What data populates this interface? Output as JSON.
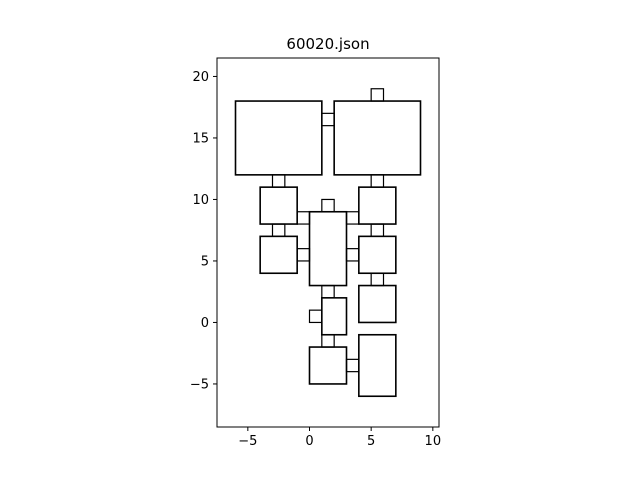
{
  "figure": {
    "title": "60020.json"
  },
  "chart_data": {
    "type": "diagram",
    "title": "60020.json",
    "xlim": [
      -7.5,
      10.5
    ],
    "ylim": [
      -8.5,
      21.5
    ],
    "x_ticks": [
      -5,
      0,
      5,
      10
    ],
    "y_ticks": [
      -5,
      0,
      5,
      10,
      15,
      20
    ],
    "rooms": [
      {
        "id": "room-1",
        "x0": -6,
        "y0": 12,
        "x1": 1,
        "y1": 18
      },
      {
        "id": "room-2",
        "x0": 2,
        "y0": 12,
        "x1": 9,
        "y1": 18
      },
      {
        "id": "room-3",
        "x0": -4,
        "y0": 8,
        "x1": -1,
        "y1": 11
      },
      {
        "id": "room-4",
        "x0": -4,
        "y0": 4,
        "x1": -1,
        "y1": 7
      },
      {
        "id": "room-5",
        "x0": 0,
        "y0": 3,
        "x1": 3,
        "y1": 9
      },
      {
        "id": "room-6",
        "x0": 4,
        "y0": 8,
        "x1": 7,
        "y1": 11
      },
      {
        "id": "room-7",
        "x0": 4,
        "y0": 4,
        "x1": 7,
        "y1": 7
      },
      {
        "id": "room-8",
        "x0": 4,
        "y0": 0,
        "x1": 7,
        "y1": 3
      },
      {
        "id": "room-9",
        "x0": 1,
        "y0": -1,
        "x1": 3,
        "y1": 2
      },
      {
        "id": "room-10",
        "x0": 0,
        "y0": -5,
        "x1": 3,
        "y1": -2
      },
      {
        "id": "room-11",
        "x0": 4,
        "y0": -6,
        "x1": 7,
        "y1": -1
      }
    ],
    "connectors": [
      {
        "id": "door-1",
        "x0": 1,
        "y0": 16,
        "x1": 2,
        "y1": 17
      },
      {
        "id": "door-2",
        "x0": 5,
        "y0": 18,
        "x1": 6,
        "y1": 19
      },
      {
        "id": "door-3",
        "x0": -3,
        "y0": 11,
        "x1": -2,
        "y1": 12
      },
      {
        "id": "door-4",
        "x0": 5,
        "y0": 11,
        "x1": 6,
        "y1": 12
      },
      {
        "id": "door-5",
        "x0": 1,
        "y0": 9,
        "x1": 2,
        "y1": 10
      },
      {
        "id": "door-6",
        "x0": -1,
        "y0": 8,
        "x1": 0,
        "y1": 9
      },
      {
        "id": "door-7",
        "x0": 3,
        "y0": 8,
        "x1": 4,
        "y1": 9
      },
      {
        "id": "door-8",
        "x0": -3,
        "y0": 7,
        "x1": -2,
        "y1": 8
      },
      {
        "id": "door-9",
        "x0": 5,
        "y0": 7,
        "x1": 6,
        "y1": 8
      },
      {
        "id": "door-10",
        "x0": -1,
        "y0": 5,
        "x1": 0,
        "y1": 6
      },
      {
        "id": "door-11",
        "x0": 3,
        "y0": 5,
        "x1": 4,
        "y1": 6
      },
      {
        "id": "door-12",
        "x0": 5,
        "y0": 3,
        "x1": 6,
        "y1": 4
      },
      {
        "id": "door-13",
        "x0": 1,
        "y0": 2,
        "x1": 2,
        "y1": 3
      },
      {
        "id": "door-14",
        "x0": 0,
        "y0": 0,
        "x1": 1,
        "y1": 1
      },
      {
        "id": "door-15",
        "x0": 1,
        "y0": -2,
        "x1": 2,
        "y1": -1
      },
      {
        "id": "door-16",
        "x0": 3,
        "y0": -4,
        "x1": 4,
        "y1": -3
      }
    ]
  }
}
